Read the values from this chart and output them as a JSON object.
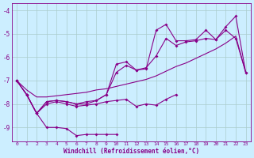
{
  "xlabel": "Windchill (Refroidissement éolien,°C)",
  "bg_color": "#cceeff",
  "grid_color": "#aacccc",
  "line_color": "#880088",
  "xlim": [
    -0.5,
    23.5
  ],
  "ylim": [
    -9.6,
    -3.7
  ],
  "yticks": [
    -9,
    -8,
    -7,
    -6,
    -5,
    -4
  ],
  "xticks": [
    0,
    1,
    2,
    3,
    4,
    5,
    6,
    7,
    8,
    9,
    10,
    11,
    12,
    13,
    14,
    15,
    16,
    17,
    18,
    19,
    20,
    21,
    22,
    23
  ],
  "line1_y": [
    -7.0,
    -7.6,
    -8.4,
    -9.0,
    -9.0,
    -9.05,
    -9.35,
    -9.3,
    -9.3,
    -9.3,
    -9.3,
    null,
    null,
    null,
    null,
    null,
    null,
    null,
    null,
    null,
    null,
    null,
    null,
    null
  ],
  "line2_y": [
    -7.0,
    -7.6,
    -8.4,
    -8.0,
    -7.9,
    -8.0,
    -8.1,
    -8.05,
    -8.0,
    -7.9,
    -7.85,
    -7.8,
    -8.1,
    -8.0,
    -8.05,
    -7.8,
    -7.6,
    null,
    null,
    null,
    null,
    null,
    null,
    null
  ],
  "line3_y": [
    -7.0,
    -7.6,
    -8.4,
    -7.9,
    -7.85,
    -7.9,
    -8.0,
    -7.9,
    -7.85,
    -7.6,
    -6.65,
    -6.35,
    -6.55,
    -6.45,
    -5.95,
    -5.2,
    -5.5,
    -5.35,
    -5.3,
    -5.2,
    -5.25,
    -4.85,
    -5.2,
    -6.65
  ],
  "line4_y": [
    -7.0,
    -7.6,
    -8.4,
    -7.9,
    -7.85,
    -7.9,
    -8.0,
    -8.0,
    -7.85,
    -7.6,
    -6.3,
    -6.2,
    -6.55,
    -6.5,
    -4.85,
    -4.6,
    -5.3,
    -5.3,
    -5.25,
    -4.85,
    -5.25,
    -4.7,
    -4.25,
    -6.65
  ],
  "line5_y": [
    -7.0,
    -7.4,
    -7.7,
    -7.7,
    -7.65,
    -7.6,
    -7.55,
    -7.5,
    -7.4,
    -7.35,
    -7.25,
    -7.15,
    -7.05,
    -6.95,
    -6.8,
    -6.6,
    -6.4,
    -6.25,
    -6.05,
    -5.85,
    -5.65,
    -5.4,
    -5.1,
    -6.65
  ]
}
